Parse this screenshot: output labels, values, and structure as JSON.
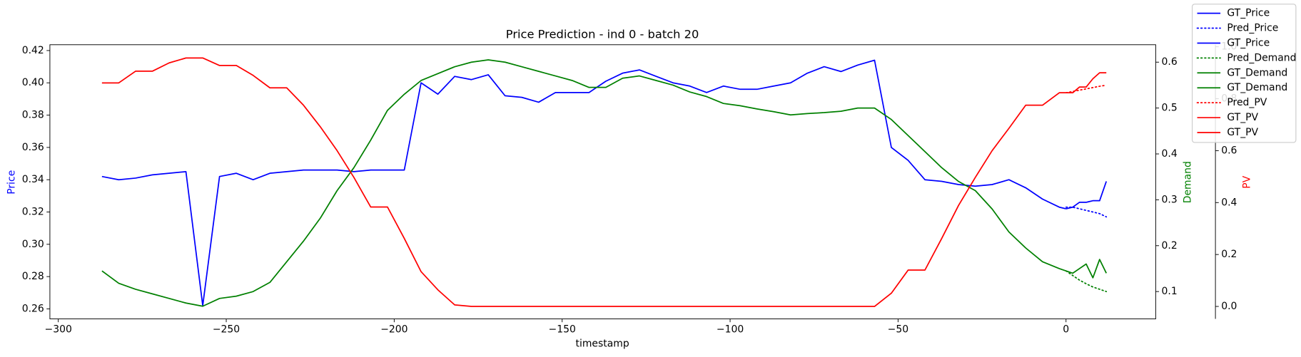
{
  "chart_data": {
    "type": "line",
    "title": "Price Prediction - ind 0 - batch 20",
    "x_label": "timestamp",
    "y_label": "Price",
    "y2_label": "Demand",
    "y3_label": "PV",
    "xlim": [
      -302.5,
      26.7
    ],
    "ylim": [
      0.2538,
      0.4236
    ],
    "y2lim": [
      0.0404,
      0.638
    ],
    "y3lim": [
      -0.048,
      1.008
    ],
    "xticks": [
      {
        "value": -300,
        "label": "−300"
      },
      {
        "value": -250,
        "label": "−250"
      },
      {
        "value": -200,
        "label": "−200"
      },
      {
        "value": -150,
        "label": "−150"
      },
      {
        "value": -100,
        "label": "−100"
      },
      {
        "value": -50,
        "label": "−50"
      },
      0
    ],
    "yticks": [
      0.26,
      0.28,
      {
        "value": 0.3,
        "label": "0.30"
      },
      0.32,
      0.34,
      0.36,
      0.38,
      {
        "value": 0.4,
        "label": "0.40"
      },
      0.42
    ],
    "y2ticks": [
      0.1,
      0.2,
      0.3,
      0.4,
      0.5,
      0.6
    ],
    "y3ticks": [
      {
        "value": 0,
        "label": "0.0"
      },
      0.2,
      0.4,
      0.6,
      0.8,
      {
        "value": 1,
        "label": "1.0"
      }
    ],
    "legend": "upper right",
    "series": [
      {
        "name": "GT_Price",
        "color": "#0000ff",
        "style": "solid",
        "axis": "y",
        "x": [
          -287,
          -282,
          -277,
          -272,
          -267,
          -262,
          -257,
          -252,
          -247,
          -242,
          -237,
          -232,
          -227,
          -222,
          -217,
          -212,
          -207,
          -202,
          -197,
          -192,
          -187,
          -182,
          -177,
          -172,
          -167,
          -162,
          -157,
          -152,
          -147,
          -142,
          -137,
          -132,
          -127,
          -122,
          -117,
          -112,
          -107,
          -102,
          -97,
          -92,
          -87,
          -82,
          -77,
          -72,
          -67,
          -62,
          -57,
          -52,
          -47,
          -42,
          -37,
          -32,
          -27,
          -22,
          -17,
          -12,
          -7,
          -2,
          0
        ],
        "values": [
          0.342,
          0.34,
          0.341,
          0.343,
          0.344,
          0.345,
          0.262,
          0.342,
          0.344,
          0.34,
          0.344,
          0.345,
          0.346,
          0.346,
          0.346,
          0.345,
          0.346,
          0.346,
          0.346,
          0.4,
          0.393,
          0.404,
          0.402,
          0.405,
          0.392,
          0.391,
          0.388,
          0.394,
          0.394,
          0.394,
          0.401,
          0.406,
          0.408,
          0.404,
          0.4,
          0.398,
          0.394,
          0.398,
          0.396,
          0.396,
          0.398,
          0.4,
          0.406,
          0.41,
          0.407,
          0.411,
          0.414,
          0.36,
          0.352,
          0.34,
          0.339,
          0.337,
          0.336,
          0.337,
          0.34,
          0.335,
          0.328,
          0.323,
          0.322
        ]
      },
      {
        "name": "Pred_Price",
        "color": "#0000ff",
        "style": "dotted",
        "axis": "y",
        "x": [
          0,
          2,
          4,
          6,
          8,
          10,
          12
        ],
        "values": [
          0.323,
          0.323,
          0.322,
          0.321,
          0.32,
          0.319,
          0.317
        ]
      },
      {
        "name": "GT_Price",
        "color": "#0000ff",
        "style": "solid",
        "axis": "y",
        "x": [
          0,
          2,
          4,
          6,
          8,
          10,
          12
        ],
        "values": [
          0.322,
          0.323,
          0.326,
          0.326,
          0.327,
          0.327,
          0.339
        ]
      },
      {
        "name": "Pred_Demand",
        "color": "#008000",
        "style": "dotted",
        "axis": "y2",
        "x": [
          0,
          2,
          4,
          6,
          8,
          10,
          12
        ],
        "values": [
          0.145,
          0.135,
          0.125,
          0.117,
          0.11,
          0.105,
          0.1
        ]
      },
      {
        "name": "GT_Demand",
        "color": "#008000",
        "style": "solid",
        "axis": "y2",
        "x": [
          -287,
          -282,
          -277,
          -272,
          -267,
          -262,
          -257,
          -252,
          -247,
          -242,
          -237,
          -232,
          -227,
          -222,
          -217,
          -212,
          -207,
          -202,
          -197,
          -192,
          -187,
          -182,
          -177,
          -172,
          -167,
          -162,
          -157,
          -152,
          -147,
          -142,
          -137,
          -132,
          -127,
          -122,
          -117,
          -112,
          -107,
          -102,
          -97,
          -92,
          -87,
          -82,
          -77,
          -72,
          -67,
          -62,
          -57,
          -52,
          -47,
          -42,
          -37,
          -32,
          -27,
          -22,
          -17,
          -12,
          -7,
          -2,
          0
        ],
        "values": [
          0.145,
          0.118,
          0.105,
          0.095,
          0.085,
          0.075,
          0.068,
          0.085,
          0.09,
          0.1,
          0.12,
          0.165,
          0.21,
          0.26,
          0.32,
          0.37,
          0.43,
          0.495,
          0.53,
          0.56,
          0.575,
          0.59,
          0.6,
          0.605,
          0.6,
          0.59,
          0.58,
          0.57,
          0.56,
          0.545,
          0.545,
          0.565,
          0.57,
          0.56,
          0.55,
          0.535,
          0.525,
          0.51,
          0.505,
          0.498,
          0.492,
          0.485,
          0.488,
          0.49,
          0.493,
          0.5,
          0.5,
          0.475,
          0.44,
          0.405,
          0.37,
          0.34,
          0.32,
          0.28,
          0.23,
          0.195,
          0.165,
          0.15,
          0.145
        ]
      },
      {
        "name": "GT_Demand",
        "color": "#008000",
        "style": "solid",
        "axis": "y2",
        "x": [
          0,
          2,
          4,
          6,
          8,
          10,
          12
        ],
        "values": [
          0.145,
          0.14,
          0.15,
          0.16,
          0.13,
          0.17,
          0.14
        ]
      },
      {
        "name": "Pred_PV",
        "color": "#ff0000",
        "style": "dotted",
        "axis": "y3",
        "x": [
          0,
          2,
          4,
          6,
          8,
          10,
          12
        ],
        "values": [
          0.823,
          0.828,
          0.833,
          0.838,
          0.843,
          0.848,
          0.852
        ]
      },
      {
        "name": "GT_PV",
        "color": "#ff0000",
        "style": "solid",
        "axis": "y3",
        "x": [
          -287,
          -282,
          -277,
          -272,
          -267,
          -262,
          -257,
          -252,
          -247,
          -242,
          -237,
          -232,
          -227,
          -222,
          -217,
          -212,
          -207,
          -202,
          -197,
          -192,
          -187,
          -182,
          -177,
          -172,
          -167,
          -162,
          -157,
          -152,
          -147,
          -142,
          -137,
          -132,
          -127,
          -122,
          -117,
          -112,
          -107,
          -102,
          -97,
          -92,
          -87,
          -82,
          -77,
          -72,
          -67,
          -62,
          -57,
          -52,
          -47,
          -42,
          -37,
          -32,
          -27,
          -22,
          -17,
          -12,
          -7,
          -2,
          0
        ],
        "values": [
          0.861,
          0.861,
          0.906,
          0.906,
          0.938,
          0.957,
          0.957,
          0.928,
          0.928,
          0.89,
          0.842,
          0.842,
          0.775,
          0.692,
          0.6,
          0.497,
          0.383,
          0.383,
          0.262,
          0.134,
          0.064,
          0.006,
          0,
          0,
          0,
          0,
          0,
          0,
          0,
          0,
          0,
          0,
          0,
          0,
          0,
          0,
          0,
          0,
          0,
          0,
          0,
          0,
          0,
          0,
          0,
          0,
          0,
          0.051,
          0.14,
          0.14,
          0.262,
          0.389,
          0.497,
          0.6,
          0.686,
          0.775,
          0.775,
          0.823,
          0.823
        ]
      },
      {
        "name": "GT_PV",
        "color": "#ff0000",
        "style": "solid",
        "axis": "y3",
        "x": [
          0,
          2,
          4,
          6,
          8,
          10,
          12
        ],
        "values": [
          0.823,
          0.823,
          0.845,
          0.845,
          0.877,
          0.9,
          0.9
        ]
      }
    ]
  }
}
